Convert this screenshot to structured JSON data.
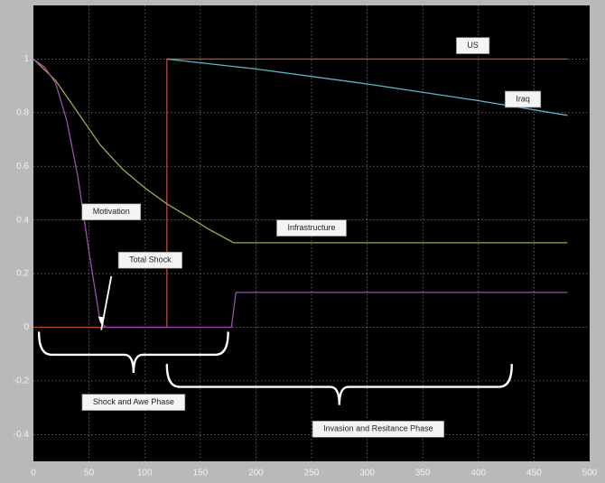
{
  "chart_data": {
    "type": "line",
    "xlim": [
      0,
      500
    ],
    "ylim": [
      -0.5,
      1.2
    ],
    "xticks": [
      0,
      50,
      100,
      150,
      200,
      250,
      300,
      350,
      400,
      450,
      500
    ],
    "yticks": [
      1,
      0.8,
      0.6,
      0.4,
      0.2,
      0,
      -0.2,
      -0.4
    ],
    "ytick_labels": [
      "1",
      "0.8",
      "0.6",
      "0.4",
      "0.2",
      "0",
      "-0.2",
      "-0.4"
    ],
    "grid": true,
    "series": [
      {
        "color": "#b84a2e",
        "points": [
          [
            0,
            0
          ],
          [
            120,
            0
          ],
          [
            120,
            1
          ],
          [
            480,
            1
          ]
        ]
      },
      {
        "color": "#5fb8c8",
        "points": [
          [
            120,
            1
          ],
          [
            200,
            0.963
          ],
          [
            300,
            0.907
          ],
          [
            400,
            0.845
          ],
          [
            480,
            0.79
          ]
        ]
      },
      {
        "color": "#a3a64c",
        "points": [
          [
            0,
            1
          ],
          [
            20,
            0.92
          ],
          [
            40,
            0.8
          ],
          [
            60,
            0.68
          ],
          [
            80,
            0.59
          ],
          [
            100,
            0.52
          ],
          [
            120,
            0.46
          ],
          [
            140,
            0.41
          ],
          [
            160,
            0.36
          ],
          [
            180,
            0.315
          ],
          [
            480,
            0.315
          ]
        ]
      },
      {
        "color": "#9a4fb0",
        "points": [
          [
            0,
            1
          ],
          [
            10,
            0.97
          ],
          [
            20,
            0.91
          ],
          [
            30,
            0.77
          ],
          [
            40,
            0.56
          ],
          [
            50,
            0.28
          ],
          [
            60,
            0.02
          ],
          [
            65,
            0
          ],
          [
            178,
            0
          ],
          [
            182,
            0.13
          ],
          [
            480,
            0.13
          ]
        ]
      }
    ],
    "annotations": [
      {
        "id": "us",
        "text": "US",
        "x": 395,
        "y": 1.05
      },
      {
        "id": "iraq",
        "text": "Iraq",
        "x": 440,
        "y": 0.85
      },
      {
        "id": "motivation",
        "text": "Motivation",
        "x": 70,
        "y": 0.43
      },
      {
        "id": "infrastructure",
        "text": "Infrastructure",
        "x": 250,
        "y": 0.37
      },
      {
        "id": "total-shock",
        "text": "Total Shock",
        "x": 105,
        "y": 0.25
      },
      {
        "id": "shock-awe",
        "text": "Shock and Awe Phase",
        "x": 90,
        "y": -0.28
      },
      {
        "id": "invasion",
        "text": "Invasion and Resitance Phase",
        "x": 310,
        "y": -0.38
      }
    ],
    "braces": [
      {
        "x0": 5,
        "x1": 175,
        "y": -0.02,
        "depth": 0.15
      },
      {
        "x0": 120,
        "x1": 430,
        "y": -0.14,
        "depth": 0.15
      }
    ],
    "arrow": {
      "from": [
        70,
        0.19
      ],
      "to": [
        61,
        0.01
      ]
    }
  }
}
